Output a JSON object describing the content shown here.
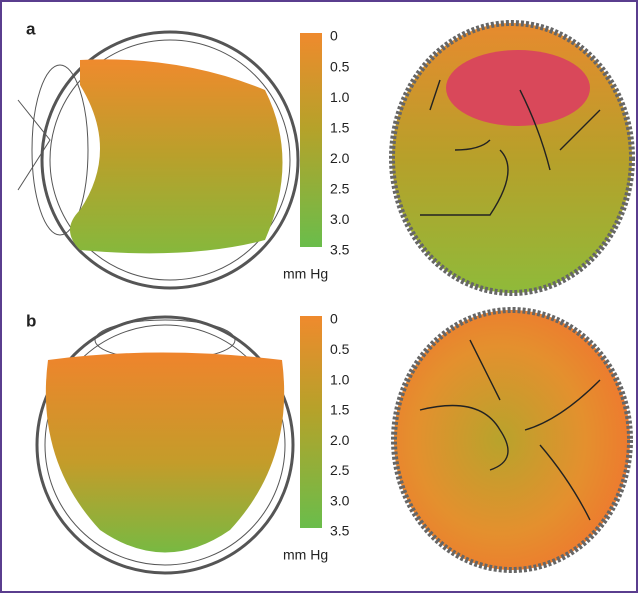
{
  "panels": [
    {
      "label": "a",
      "colorbar": {
        "ticks": [
          "0",
          "0.5",
          "1.0",
          "1.5",
          "2.0",
          "2.5",
          "3.0",
          "3.5"
        ],
        "unit": "mm Hg"
      }
    },
    {
      "label": "b",
      "colorbar": {
        "ticks": [
          "0",
          "0.5",
          "1.0",
          "1.5",
          "2.0",
          "2.5",
          "3.0",
          "3.5"
        ],
        "unit": "mm Hg"
      }
    }
  ]
}
